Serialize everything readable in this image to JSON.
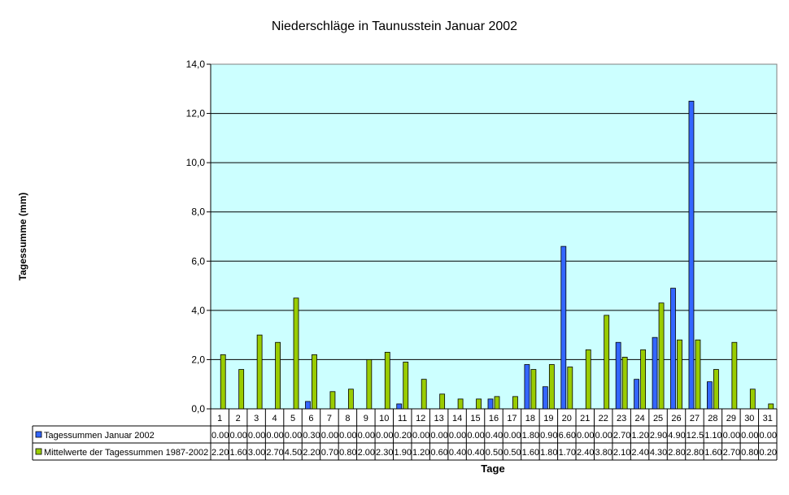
{
  "chart_data": {
    "type": "bar",
    "title": "Niederschläge in Taunusstein Januar 2002",
    "xlabel": "Tage",
    "ylabel": "Tagessumme (mm)",
    "ylim": [
      0,
      14
    ],
    "yticks": [
      "0,0",
      "2,0",
      "4,0",
      "6,0",
      "8,0",
      "10,0",
      "12,0",
      "14,0"
    ],
    "grid": true,
    "legend": "data-table",
    "plot_background": "#CCFFFF",
    "categories": [
      "1",
      "2",
      "3",
      "4",
      "5",
      "6",
      "7",
      "8",
      "9",
      "10",
      "11",
      "12",
      "13",
      "14",
      "15",
      "16",
      "17",
      "18",
      "19",
      "20",
      "21",
      "22",
      "23",
      "24",
      "25",
      "26",
      "27",
      "28",
      "29",
      "30",
      "31"
    ],
    "series": [
      {
        "name": "Tagessummen Januar 2002",
        "color": "#3366FF",
        "values": [
          0.0,
          0.0,
          0.0,
          0.0,
          0.0,
          0.3,
          0.0,
          0.0,
          0.0,
          0.0,
          0.2,
          0.0,
          0.0,
          0.0,
          0.0,
          0.4,
          0.0,
          1.8,
          0.9,
          6.6,
          0.0,
          0.0,
          2.7,
          1.2,
          2.9,
          4.9,
          12.5,
          1.1,
          0.0,
          0.0,
          0.0
        ],
        "labels": [
          "0.00",
          "0.00",
          "0.00",
          "0.00",
          "0.00",
          "0.30",
          "0.00",
          "0.00",
          "0.00",
          "0.00",
          "0.20",
          "0.00",
          "0.00",
          "0.00",
          "0.00",
          "0.40",
          "0.00",
          "1.80",
          "0.90",
          "6.60",
          "0.00",
          "0.00",
          "2.70",
          "1.20",
          "2.90",
          "4.90",
          "12.5",
          "1.10",
          "0.00",
          "0.00",
          "0.00"
        ]
      },
      {
        "name": "Mittelwerte der Tagessummen 1987-2002",
        "color": "#99CC00",
        "values": [
          2.2,
          1.6,
          3.0,
          2.7,
          4.5,
          2.2,
          0.7,
          0.8,
          2.0,
          2.3,
          1.9,
          1.2,
          0.6,
          0.4,
          0.4,
          0.5,
          0.5,
          1.6,
          1.8,
          1.7,
          2.4,
          3.8,
          2.1,
          2.4,
          4.3,
          2.8,
          2.8,
          1.6,
          2.7,
          0.8,
          0.2
        ],
        "labels": [
          "2.20",
          "1.60",
          "3.00",
          "2.70",
          "4.50",
          "2.20",
          "0.70",
          "0.80",
          "2.00",
          "2.30",
          "1.90",
          "1.20",
          "0.60",
          "0.40",
          "0.40",
          "0.50",
          "0.50",
          "1.60",
          "1.80",
          "1.70",
          "2.40",
          "3.80",
          "2.10",
          "2.40",
          "4.30",
          "2.80",
          "2.80",
          "1.60",
          "2.70",
          "0.80",
          "0.20"
        ]
      }
    ]
  }
}
